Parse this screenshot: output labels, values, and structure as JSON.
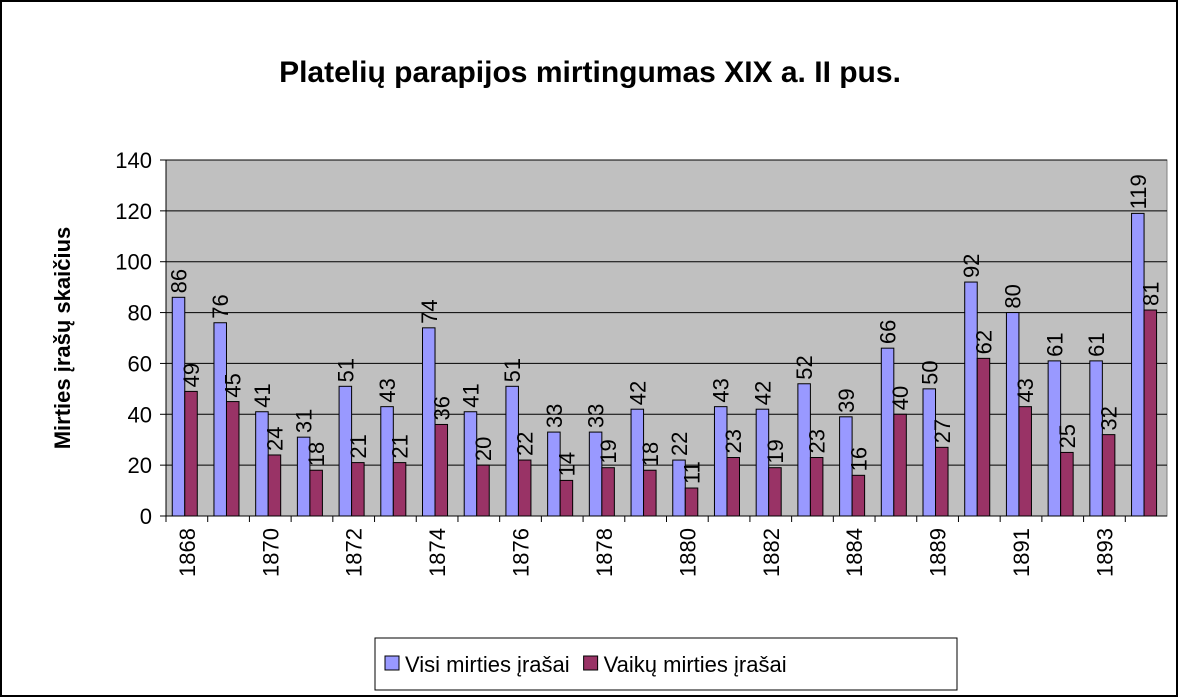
{
  "chart_data": {
    "type": "bar",
    "title": "Platelių parapijos mirtingumas XIX a. II pus.",
    "y_label": "Mirties įrašų skaičius",
    "categories": [
      "1868",
      null,
      "1870",
      null,
      "1872",
      null,
      "1874",
      null,
      "1876",
      null,
      "1878",
      null,
      "1880",
      null,
      "1882",
      null,
      "1884",
      null,
      "1889",
      null,
      "1891",
      null,
      "1893",
      null
    ],
    "series": [
      {
        "name": "Visi mirties įrašai",
        "color": "#9999ff",
        "values": [
          86,
          76,
          41,
          31,
          51,
          43,
          74,
          41,
          51,
          33,
          33,
          42,
          22,
          43,
          42,
          52,
          39,
          66,
          50,
          92,
          80,
          61,
          61,
          119
        ]
      },
      {
        "name": "Vaikų mirties įrašai",
        "color": "#993366",
        "values": [
          49,
          45,
          24,
          18,
          21,
          21,
          36,
          20,
          22,
          14,
          19,
          18,
          11,
          23,
          19,
          23,
          16,
          40,
          27,
          62,
          43,
          25,
          32,
          81
        ]
      }
    ],
    "ylim": [
      0,
      140
    ],
    "yticks": [
      0,
      20,
      40,
      60,
      80,
      100,
      120,
      140
    ],
    "grid": true,
    "plot_background": "#c0c0c0",
    "legend": "bottom"
  }
}
